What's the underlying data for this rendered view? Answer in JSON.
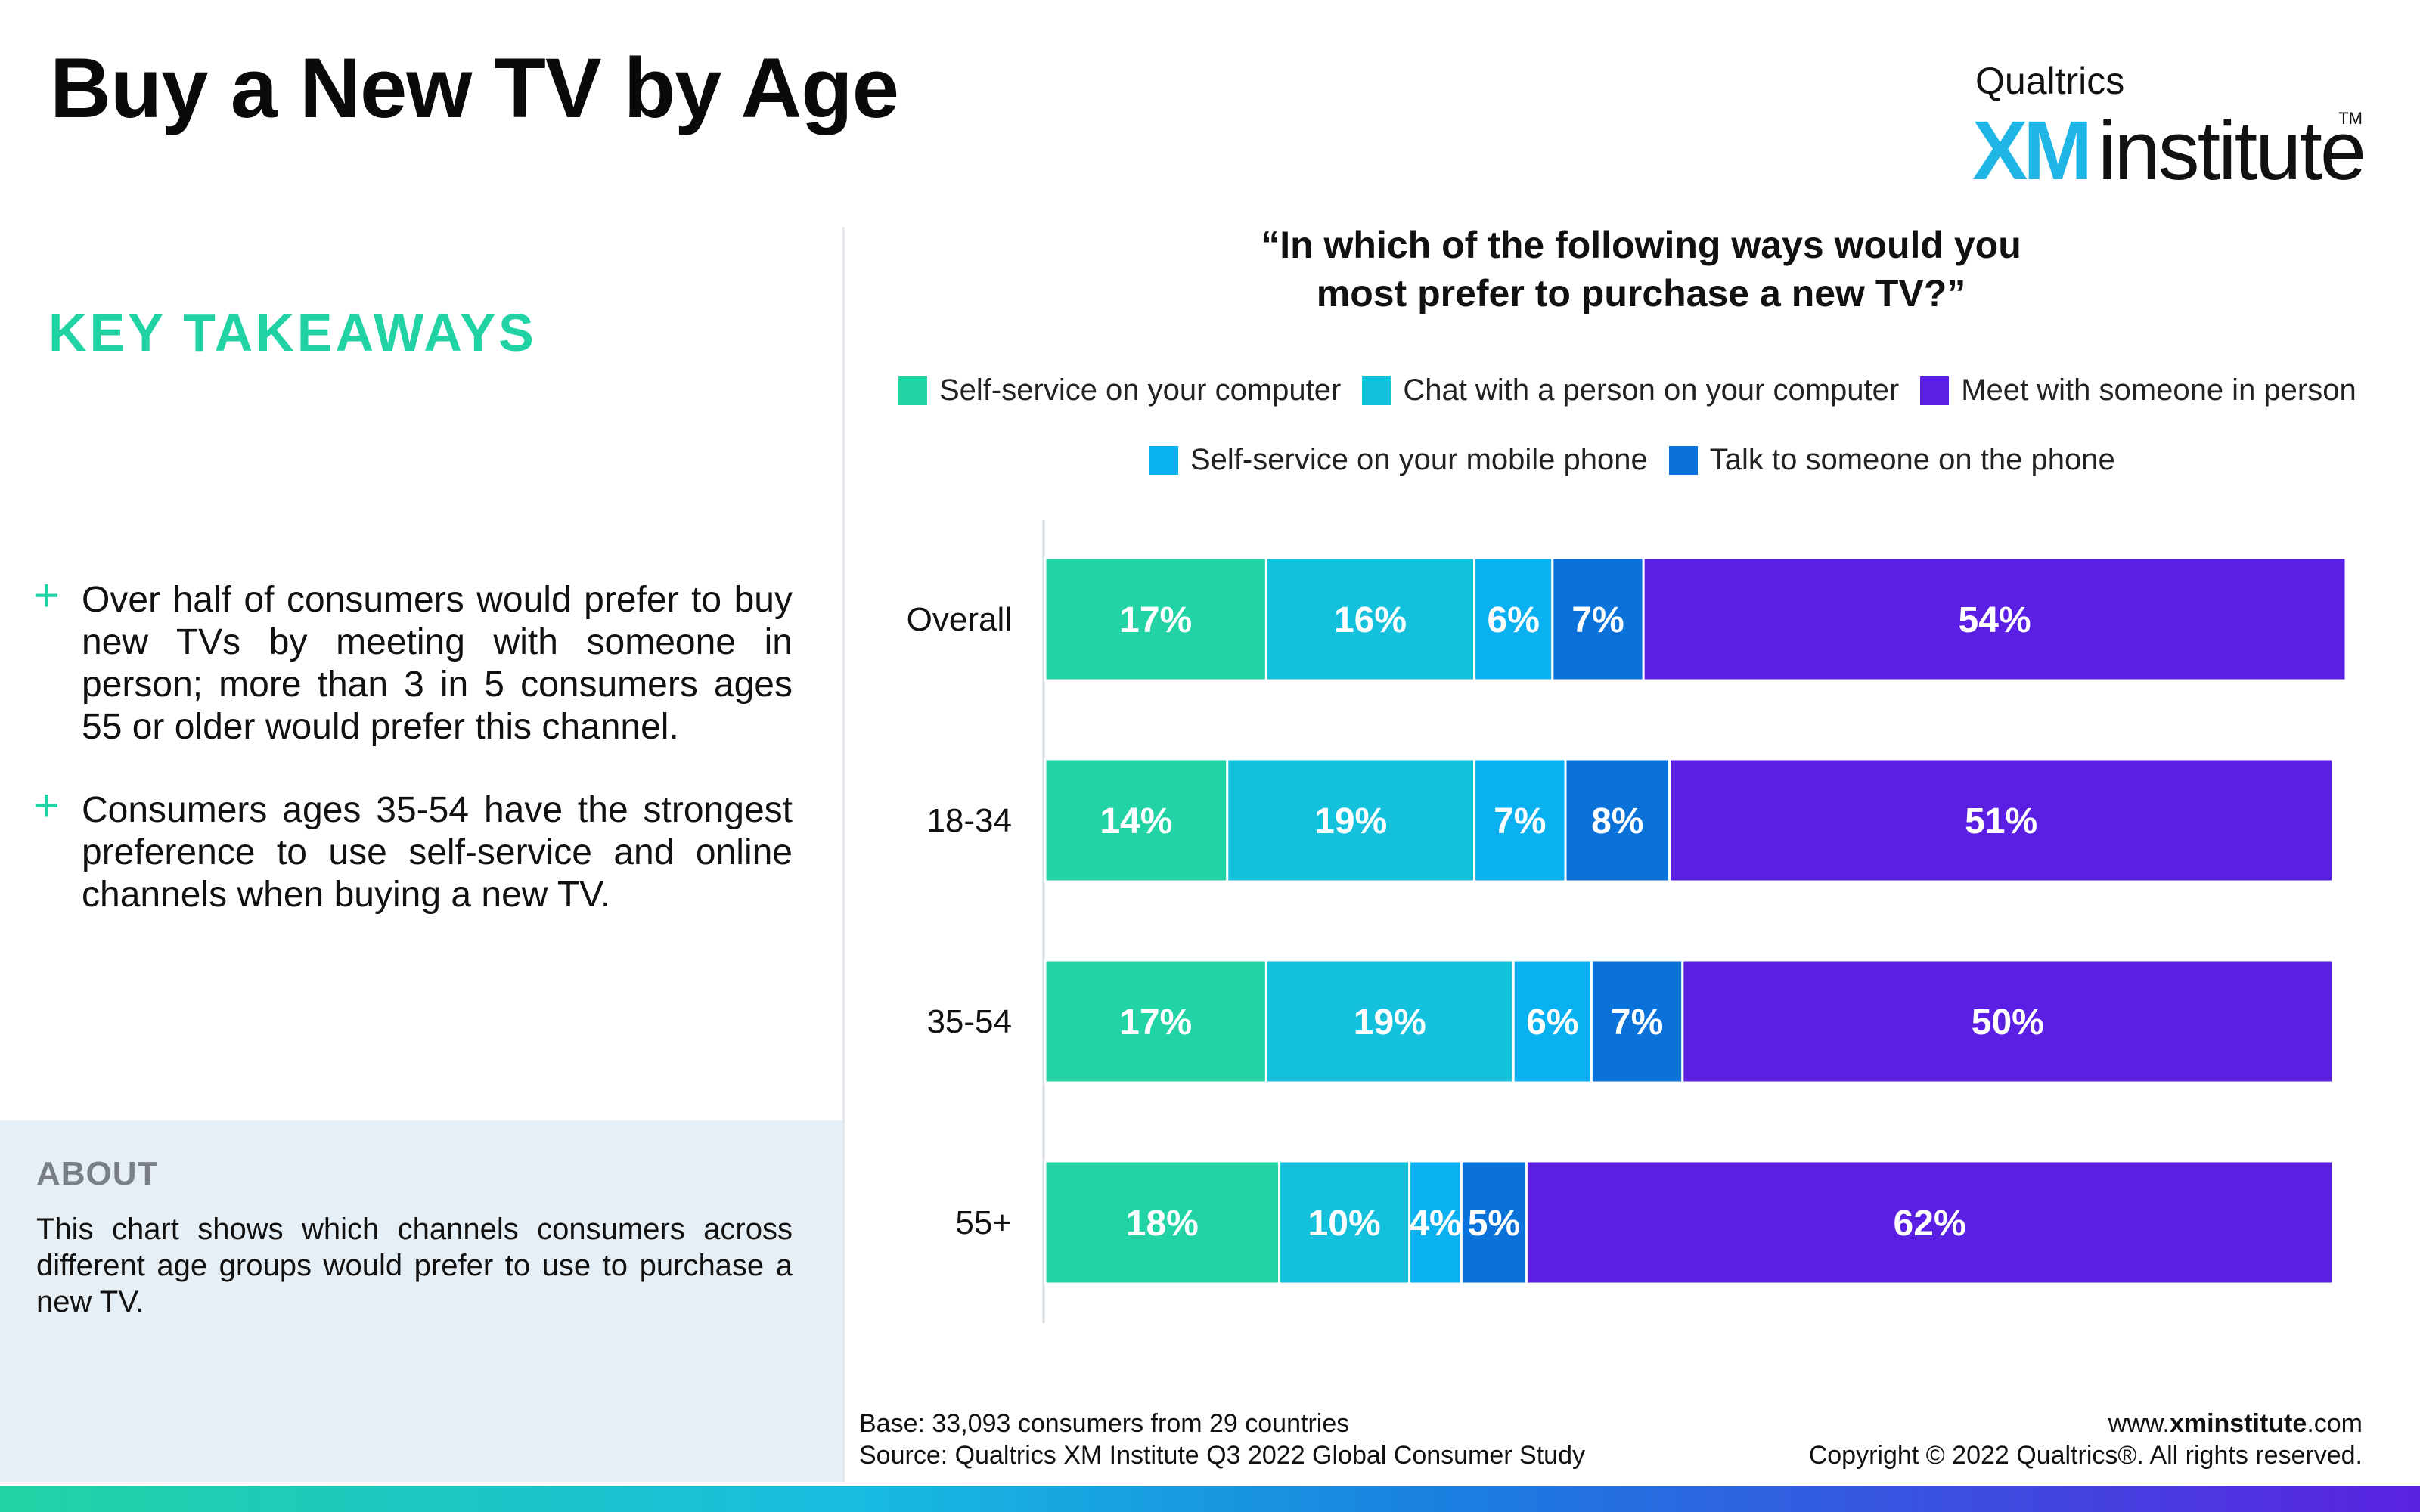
{
  "page": {
    "title": "Buy a New TV by Age"
  },
  "logo": {
    "brand": "Qualtrics",
    "xm": "XM",
    "institute": "institute",
    "tm": "TM"
  },
  "takeaways": {
    "heading": "KEY TAKEAWAYS",
    "items": [
      "Over half of consumers would prefer to buy new TVs by meeting with someone in person; more than 3 in 5 consumers ages 55 or older would prefer this channel.",
      "Consumers ages 35-54 have the strongest preference to use self-service and online channels when buying a new TV."
    ],
    "bullet": "+"
  },
  "about": {
    "heading": "ABOUT",
    "text": "This chart shows which channels consumers across different age groups would prefer to use to purchase a new TV."
  },
  "footer": {
    "base": "Base: 33,093 consumers from 29 countries",
    "source": "Source: Qualtrics XM Institute Q3 2022 Global Consumer Study",
    "site_prefix": "www.",
    "site_bold": "xminstitute",
    "site_suffix": ".com",
    "copyright": "Copyright © 2022 Qualtrics®. All rights reserved."
  },
  "colors": {
    "self_computer": "#22d3a6",
    "chat_computer": "#14c1dc",
    "self_mobile": "#0ab1f0",
    "talk_phone": "#0a72d8",
    "meet_person": "#5a1fe2"
  },
  "chart_data": {
    "type": "bar",
    "orientation": "horizontal",
    "stacked": true,
    "title": "“In which of the following ways would you most prefer to purchase a new TV?”",
    "title_lines": [
      "“In which of the following ways would you",
      "most prefer to purchase a new TV?”"
    ],
    "categories": [
      "Overall",
      "18-34",
      "35-54",
      "55+"
    ],
    "series": [
      {
        "name": "Self-service on your computer",
        "color": "#22d3a6",
        "values": [
          17,
          14,
          17,
          18
        ]
      },
      {
        "name": "Chat with a person on your computer",
        "color": "#14c1dc",
        "values": [
          16,
          19,
          19,
          10
        ]
      },
      {
        "name": "Self-service on your mobile phone",
        "color": "#0ab1f0",
        "values": [
          6,
          7,
          6,
          4
        ]
      },
      {
        "name": "Talk to someone on the phone",
        "color": "#0a72d8",
        "values": [
          7,
          8,
          7,
          5
        ]
      },
      {
        "name": "Meet with someone in person",
        "color": "#5a1fe2",
        "values": [
          54,
          51,
          50,
          62
        ]
      }
    ],
    "value_suffix": "%",
    "legend_rows": [
      [
        0,
        1,
        4
      ],
      [
        2,
        3
      ]
    ],
    "legend_placement": "top",
    "grid": false,
    "xlim": [
      0,
      100
    ]
  }
}
